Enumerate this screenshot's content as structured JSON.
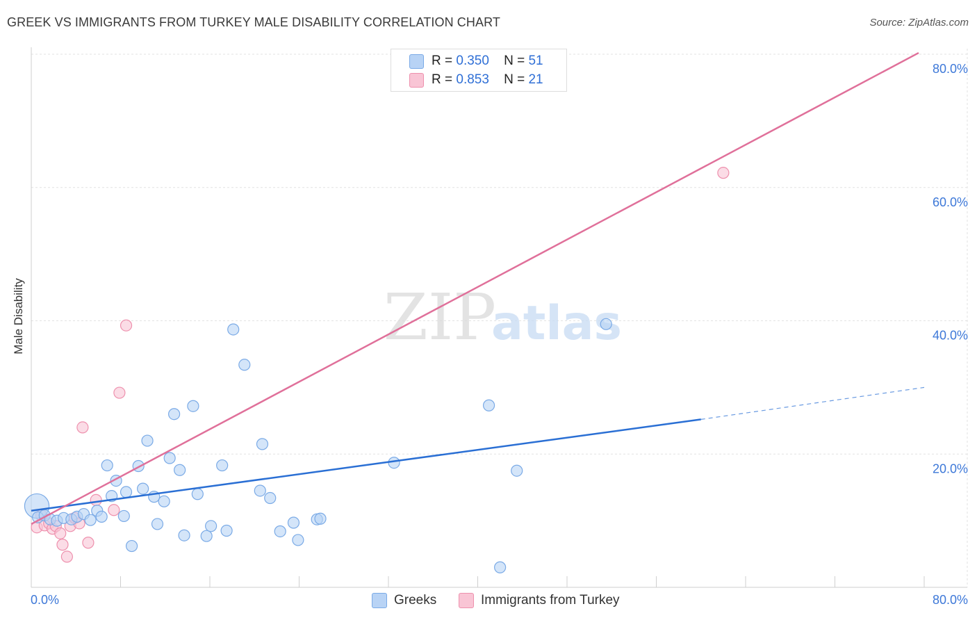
{
  "header": {
    "title": "GREEK VS IMMIGRANTS FROM TURKEY MALE DISABILITY CORRELATION CHART",
    "source": "Source: ZipAtlas.com"
  },
  "watermark": {
    "zip": "ZIP",
    "atlas": "atlas"
  },
  "legend_top": {
    "r_label": "R =",
    "n_label": "N =",
    "greeks": {
      "r": "0.350",
      "n": "51"
    },
    "turkey": {
      "r": "0.853",
      "n": "21"
    }
  },
  "legend_bottom": {
    "greeks": "Greeks",
    "turkey": "Immigrants from Turkey"
  },
  "colors": {
    "greeks_fill": "#b8d3f5",
    "greeks_stroke": "#7aaae6",
    "greeks_line": "#2a6fd4",
    "turkey_fill": "#f9c5d5",
    "turkey_stroke": "#ee90ad",
    "turkey_line": "#e0709a",
    "axis_label": "#3d78d8",
    "grid": "#e2e2e2"
  },
  "chart_data": {
    "type": "scatter",
    "title": "GREEK VS IMMIGRANTS FROM TURKEY MALE DISABILITY CORRELATION CHART",
    "xlabel": "",
    "ylabel": "Male Disability",
    "xlim": [
      0,
      80
    ],
    "ylim": [
      0,
      80
    ],
    "x_ticks": [
      0,
      80
    ],
    "x_tick_labels": [
      "0.0%",
      "80.0%"
    ],
    "y_ticks": [
      20,
      40,
      60,
      80
    ],
    "y_tick_labels": [
      "20.0%",
      "40.0%",
      "60.0%",
      "80.0%"
    ],
    "grid": true,
    "legend_position": "top-center",
    "series": [
      {
        "name": "Greeks",
        "R": 0.35,
        "N": 51,
        "points": [
          [
            0.5,
            12.2,
            2.2
          ],
          [
            0.6,
            10.5,
            1
          ],
          [
            1.2,
            10.8,
            1
          ],
          [
            1.7,
            10.2,
            1
          ],
          [
            2.3,
            10.0,
            1
          ],
          [
            2.9,
            10.4,
            1
          ],
          [
            3.6,
            10.2,
            1
          ],
          [
            4.1,
            10.6,
            1
          ],
          [
            4.7,
            11.0,
            1
          ],
          [
            5.3,
            10.1,
            1
          ],
          [
            5.9,
            11.5,
            1
          ],
          [
            6.3,
            10.6,
            1
          ],
          [
            6.8,
            18.3,
            1
          ],
          [
            7.2,
            13.7,
            1
          ],
          [
            7.6,
            16.0,
            1
          ],
          [
            8.3,
            10.7,
            1
          ],
          [
            8.5,
            14.3,
            1
          ],
          [
            9.0,
            6.2,
            1
          ],
          [
            9.6,
            18.2,
            1
          ],
          [
            10.0,
            14.8,
            1
          ],
          [
            10.4,
            22.0,
            1
          ],
          [
            11.0,
            13.6,
            1
          ],
          [
            11.3,
            9.5,
            1
          ],
          [
            11.9,
            12.9,
            1
          ],
          [
            12.4,
            19.4,
            1
          ],
          [
            12.8,
            26.0,
            1
          ],
          [
            13.3,
            17.6,
            1
          ],
          [
            13.7,
            7.8,
            1
          ],
          [
            14.5,
            27.2,
            1
          ],
          [
            14.9,
            14.0,
            1
          ],
          [
            15.7,
            7.7,
            1
          ],
          [
            16.1,
            9.2,
            1
          ],
          [
            17.1,
            18.3,
            1
          ],
          [
            17.5,
            8.5,
            1
          ],
          [
            18.1,
            38.7,
            1
          ],
          [
            19.1,
            33.4,
            1
          ],
          [
            20.5,
            14.5,
            1
          ],
          [
            20.7,
            21.5,
            1
          ],
          [
            21.4,
            13.4,
            1
          ],
          [
            22.3,
            8.4,
            1
          ],
          [
            23.5,
            9.7,
            1
          ],
          [
            23.9,
            7.1,
            1
          ],
          [
            25.6,
            10.2,
            1
          ],
          [
            25.9,
            10.3,
            1
          ],
          [
            32.5,
            18.7,
            1
          ],
          [
            41.0,
            27.3,
            1
          ],
          [
            42.0,
            3.0,
            1
          ],
          [
            43.5,
            17.5,
            1
          ],
          [
            51.5,
            39.5,
            1
          ]
        ],
        "trend": {
          "x0": 0,
          "y0": 11.5,
          "x1": 60,
          "y1": 25.2,
          "dash_to_x": 80,
          "dash_to_y": 30.0
        }
      },
      {
        "name": "Immigrants from Turkey",
        "R": 0.853,
        "N": 21,
        "points": [
          [
            0.5,
            9.0,
            1
          ],
          [
            0.9,
            10.8,
            1
          ],
          [
            1.2,
            9.3,
            1
          ],
          [
            1.6,
            9.6,
            1
          ],
          [
            1.9,
            8.8,
            1
          ],
          [
            2.2,
            9.2,
            1
          ],
          [
            2.6,
            8.1,
            1
          ],
          [
            2.8,
            6.4,
            1
          ],
          [
            3.2,
            4.6,
            1
          ],
          [
            3.5,
            9.2,
            1
          ],
          [
            3.9,
            10.4,
            1
          ],
          [
            4.3,
            9.6,
            1
          ],
          [
            4.6,
            24.0,
            1
          ],
          [
            5.1,
            6.7,
            1
          ],
          [
            5.8,
            13.1,
            1
          ],
          [
            7.4,
            11.6,
            1
          ],
          [
            7.9,
            29.2,
            1
          ],
          [
            8.5,
            39.3,
            1
          ],
          [
            62.0,
            62.2,
            1
          ]
        ],
        "trend": {
          "x0": 0,
          "y0": 9.5,
          "x1": 79.5,
          "y1": 80.2
        }
      }
    ]
  }
}
